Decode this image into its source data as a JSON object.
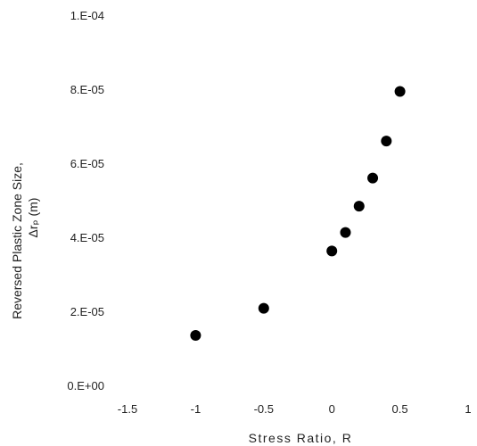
{
  "chart_data": {
    "type": "scatter",
    "title": "",
    "xlabel": "Stress Ratio, R",
    "ylabel": "Reversed Plastic Zone Size,",
    "ylabel_line2": "Δrₚ (m)",
    "xlim": [
      -1.5,
      1
    ],
    "ylim": [
      0,
      0.0001
    ],
    "x_ticks": [
      -1.5,
      -1,
      -0.5,
      0,
      0.5,
      1
    ],
    "x_tick_labels": [
      "-1.5",
      "-1",
      "-0.5",
      "0",
      "0.5",
      "1"
    ],
    "y_ticks": [
      0,
      2e-05,
      4e-05,
      6e-05,
      8e-05,
      0.0001
    ],
    "y_tick_labels": [
      "0.E+00",
      "2.E-05",
      "4.E-05",
      "6.E-05",
      "8.E-05",
      "1.E-04"
    ],
    "grid": false,
    "marker_color": "#000000",
    "points": [
      {
        "x": -1.0,
        "y": 1.35e-05
      },
      {
        "x": -0.5,
        "y": 2.08e-05
      },
      {
        "x": 0.0,
        "y": 3.63e-05
      },
      {
        "x": 0.1,
        "y": 4.13e-05
      },
      {
        "x": 0.2,
        "y": 4.84e-05
      },
      {
        "x": 0.3,
        "y": 5.6e-05
      },
      {
        "x": 0.4,
        "y": 6.6e-05
      },
      {
        "x": 0.5,
        "y": 7.94e-05
      }
    ]
  }
}
